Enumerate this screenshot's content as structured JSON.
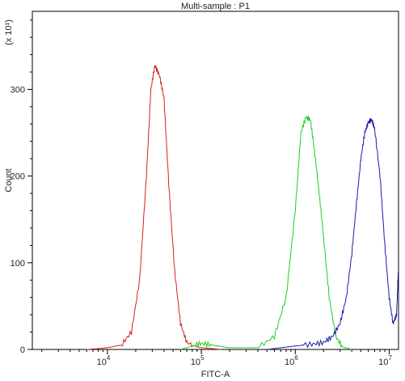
{
  "chart_data": {
    "type": "line",
    "title": "Multi-sample : P1",
    "xlabel": "FITC-A",
    "ylabel": "Count",
    "y_multiplier": "(x 10¹)",
    "x_scale": "log",
    "xlim_log10": [
      3.2,
      7.1
    ],
    "ylim": [
      0,
      390
    ],
    "x_ticks": [
      {
        "value": 10000,
        "base": "10",
        "exp": "4"
      },
      {
        "value": 100000,
        "base": "10",
        "exp": "5"
      },
      {
        "value": 1000000,
        "base": "10",
        "exp": "6"
      },
      {
        "value": 10000000,
        "base": "10",
        "exp": "7"
      }
    ],
    "y_ticks": [
      {
        "value": 0,
        "label": "0"
      },
      {
        "value": 100,
        "label": "100"
      },
      {
        "value": 200,
        "label": "200"
      },
      {
        "value": 300,
        "label": "300"
      }
    ],
    "grid": false,
    "legend": "none",
    "series": [
      {
        "color": "#cc2222",
        "peak_x": 32000,
        "peak_y": 328,
        "points": [
          [
            6000,
            0
          ],
          [
            8000,
            1
          ],
          [
            10000,
            2
          ],
          [
            14000,
            5
          ],
          [
            18000,
            20
          ],
          [
            22000,
            80
          ],
          [
            26000,
            200
          ],
          [
            29000,
            300
          ],
          [
            32000,
            328
          ],
          [
            36000,
            315
          ],
          [
            40000,
            290
          ],
          [
            45000,
            190
          ],
          [
            52000,
            90
          ],
          [
            60000,
            30
          ],
          [
            70000,
            8
          ],
          [
            90000,
            3
          ],
          [
            100000,
            2
          ],
          [
            130000,
            1
          ],
          [
            160000,
            0
          ]
        ]
      },
      {
        "color": "#22cc22",
        "peak_x": 1350000,
        "peak_y": 268,
        "points": [
          [
            60000,
            0
          ],
          [
            80000,
            4
          ],
          [
            100000,
            7
          ],
          [
            130000,
            5
          ],
          [
            200000,
            2
          ],
          [
            400000,
            2
          ],
          [
            600000,
            15
          ],
          [
            800000,
            60
          ],
          [
            1000000,
            160
          ],
          [
            1150000,
            250
          ],
          [
            1300000,
            268
          ],
          [
            1450000,
            265
          ],
          [
            1600000,
            230
          ],
          [
            1800000,
            180
          ],
          [
            2000000,
            130
          ],
          [
            2300000,
            60
          ],
          [
            2700000,
            15
          ],
          [
            3200000,
            3
          ],
          [
            4000000,
            0
          ]
        ]
      },
      {
        "color": "#1a1aaa",
        "peak_x": 6500000,
        "peak_y": 265,
        "points": [
          [
            500000,
            0
          ],
          [
            700000,
            2
          ],
          [
            1000000,
            4
          ],
          [
            1500000,
            6
          ],
          [
            2000000,
            8
          ],
          [
            2500000,
            15
          ],
          [
            3000000,
            30
          ],
          [
            3500000,
            60
          ],
          [
            4000000,
            110
          ],
          [
            4500000,
            170
          ],
          [
            5000000,
            220
          ],
          [
            5500000,
            250
          ],
          [
            6000000,
            262
          ],
          [
            6500000,
            265
          ],
          [
            7000000,
            255
          ],
          [
            8000000,
            200
          ],
          [
            9000000,
            120
          ],
          [
            10000000,
            60
          ],
          [
            11000000,
            30
          ],
          [
            12000000,
            40
          ],
          [
            12500000,
            90
          ]
        ]
      }
    ]
  }
}
